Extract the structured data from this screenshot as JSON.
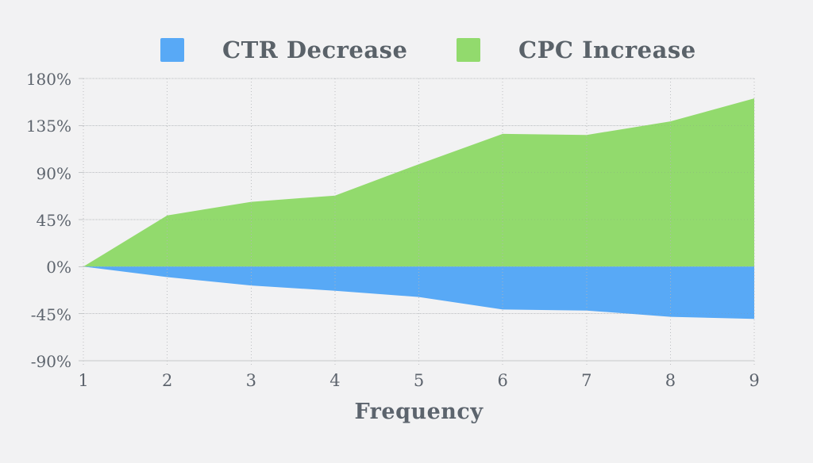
{
  "background": "#f2f2f3",
  "legend": {
    "items": [
      {
        "label": "CTR Decrease",
        "color": "#58a9f6"
      },
      {
        "label": "CPC Increase",
        "color": "#92da6d"
      }
    ]
  },
  "chart_data": {
    "type": "area",
    "x": [
      1,
      2,
      3,
      4,
      5,
      6,
      7,
      8,
      9
    ],
    "xtick_labels": [
      "1",
      "2",
      "3",
      "4",
      "5",
      "6",
      "7",
      "8",
      "9"
    ],
    "xlabel": "Frequency",
    "ylabel": "",
    "ylim": [
      -90,
      180
    ],
    "ytick_step": 45,
    "yticks": [
      180,
      135,
      90,
      45,
      0,
      -45,
      -90
    ],
    "ytick_labels": [
      "180%",
      "135%",
      "90%",
      "45%",
      "0%",
      "-45%",
      "-90%"
    ],
    "grid": true,
    "legend_position": "top",
    "baseline": 0,
    "series": [
      {
        "name": "CPC Increase",
        "color": "#92da6d",
        "values": [
          0,
          49,
          62,
          68,
          98,
          127,
          126,
          139,
          161
        ]
      },
      {
        "name": "CTR Decrease",
        "color": "#58a9f6",
        "values": [
          0,
          -10,
          -18,
          -23,
          -29,
          -41,
          -42,
          -48,
          -50
        ]
      }
    ]
  },
  "colors": {
    "grid_solid": "#dcdddf",
    "grid_dotted": "#b4b7ba",
    "axis_line": "#c6c8ca",
    "tick_text": "#5d646d"
  }
}
